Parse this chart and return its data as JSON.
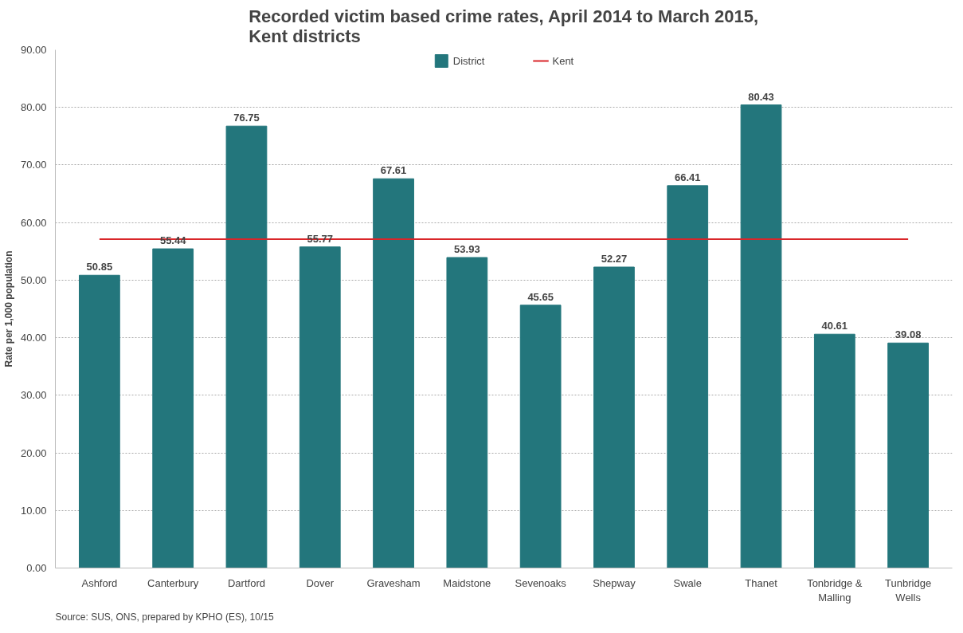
{
  "chart_data": {
    "type": "bar",
    "title": "Recorded victim based crime rates, April 2014 to March 2015,\nKent districts",
    "ylabel": "Rate per 1,000 population",
    "categories": [
      "Ashford",
      "Canterbury",
      "Dartford",
      "Dover",
      "Gravesham",
      "Maidstone",
      "Sevenoaks",
      "Shepway",
      "Swale",
      "Thanet",
      "Tonbridge &\nMalling",
      "Tunbridge\nWells"
    ],
    "series": [
      {
        "name": "District",
        "color": "#23767c",
        "values": [
          50.85,
          55.44,
          76.75,
          55.77,
          67.61,
          53.93,
          45.65,
          52.27,
          66.41,
          80.43,
          40.61,
          39.08
        ],
        "data_labels": true
      },
      {
        "name": "Kent",
        "type": "line",
        "color": "#d9262a",
        "values": [
          57.1,
          57.1,
          57.1,
          57.1,
          57.1,
          57.1,
          57.1,
          57.1,
          57.1,
          57.1,
          57.1,
          57.1
        ]
      }
    ],
    "ylim": [
      0,
      90
    ],
    "yticks": [
      {
        "value": 0,
        "label": "0.00"
      },
      {
        "value": 10,
        "label": "10.00"
      },
      {
        "value": 20,
        "label": "20.00"
      },
      {
        "value": 30,
        "label": "30.00"
      },
      {
        "value": 40,
        "label": "40.00"
      },
      {
        "value": 50,
        "label": "50.00"
      },
      {
        "value": 60,
        "label": "60.00"
      },
      {
        "value": 70,
        "label": "70.00"
      },
      {
        "value": 80,
        "label": "80.00"
      },
      {
        "value": 90,
        "label": "90.00"
      }
    ],
    "grid": "y",
    "legend": "top",
    "annotations": [
      "Source: SUS, ONS, prepared by KPHO (ES), 10/15"
    ]
  }
}
